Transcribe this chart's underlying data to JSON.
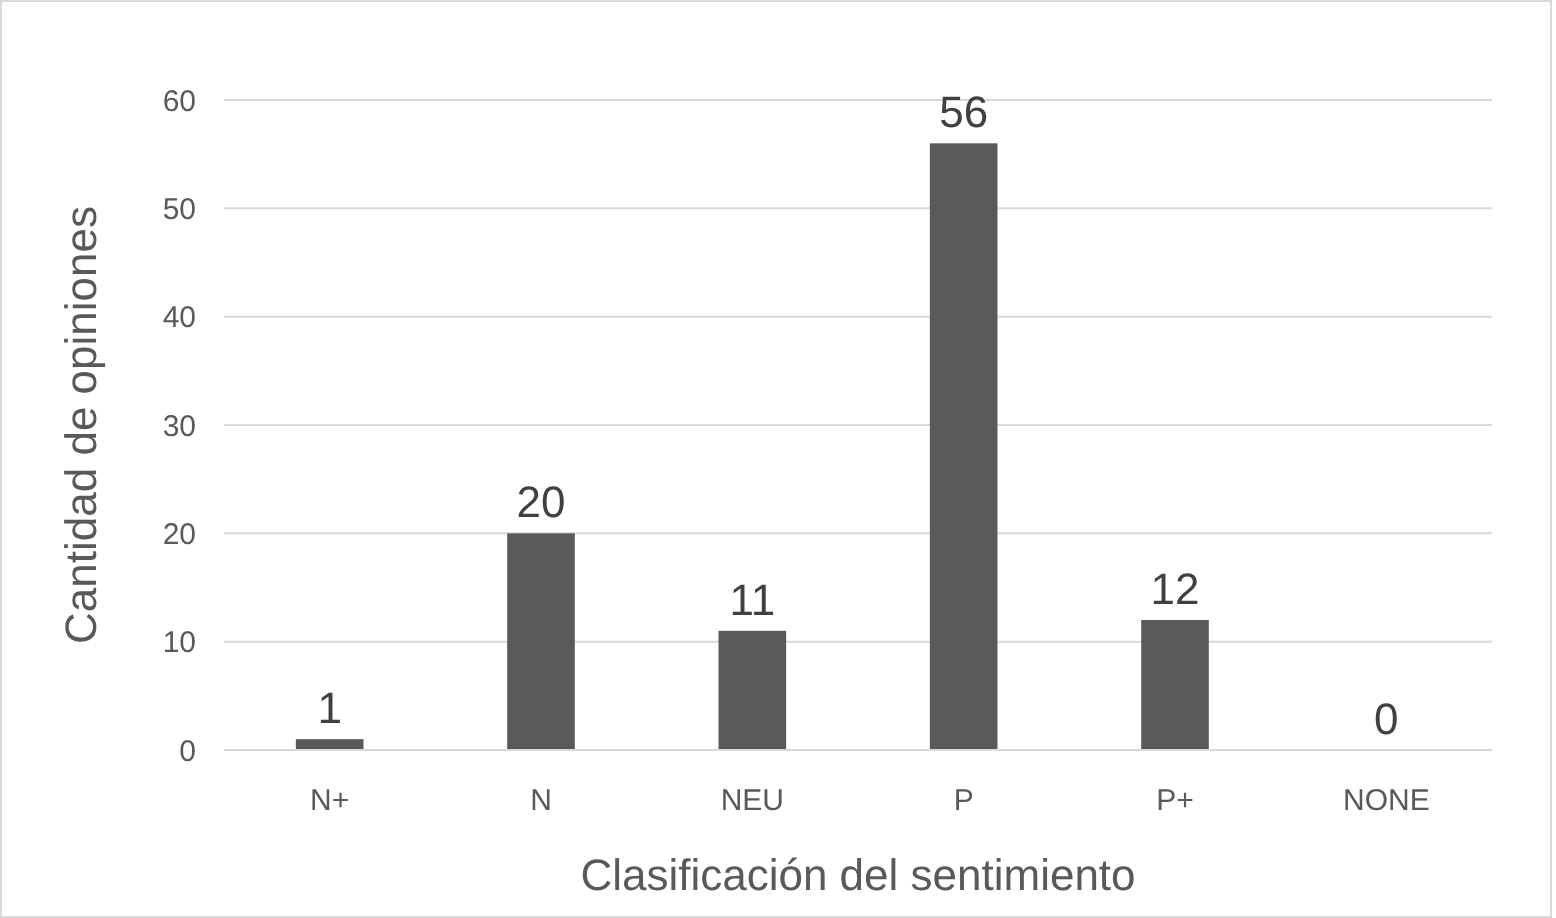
{
  "chart_data": {
    "type": "bar",
    "xlabel": "Clasificación del sentimiento",
    "ylabel": "Cantidad de opiniones",
    "categories": [
      "N+",
      "N",
      "NEU",
      "P",
      "P+",
      "NONE"
    ],
    "values": [
      1,
      20,
      11,
      56,
      12,
      0
    ],
    "color": "#595959",
    "ylim": [
      0,
      60
    ],
    "yticks": [
      0,
      10,
      20,
      30,
      40,
      50,
      60
    ],
    "grid": "y",
    "data_labels": true
  }
}
